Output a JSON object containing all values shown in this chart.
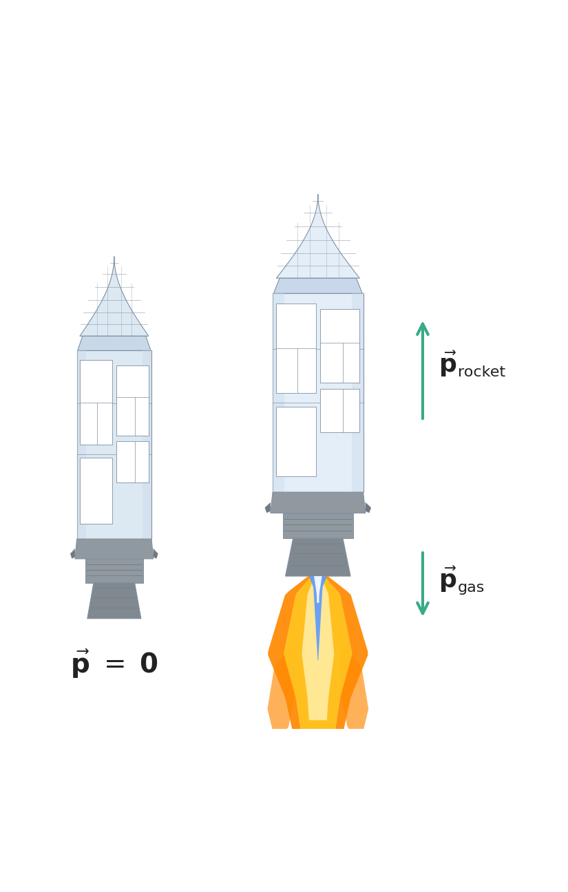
{
  "background_color": "#ffffff",
  "arrow_color": "#3aaa8a",
  "text_color": "#222222",
  "rocket_body_light": "#dce8f2",
  "rocket_body_mid": "#c8d8e8",
  "rocket_body_dark": "#a8b8c8",
  "rocket_outline": "#8090a0",
  "rocket_outline_thin": "#9098a8",
  "engine_grey": "#9098a0",
  "engine_dark": "#707880",
  "nozzle_grey": "#808890",
  "flame_orange1": "#ff8800",
  "flame_orange2": "#ffaa00",
  "flame_red": "#dd3300",
  "flame_blue": "#5599ff",
  "flame_white": "#ffffff",
  "figsize": [
    8.25,
    12.96
  ],
  "dpi": 100
}
